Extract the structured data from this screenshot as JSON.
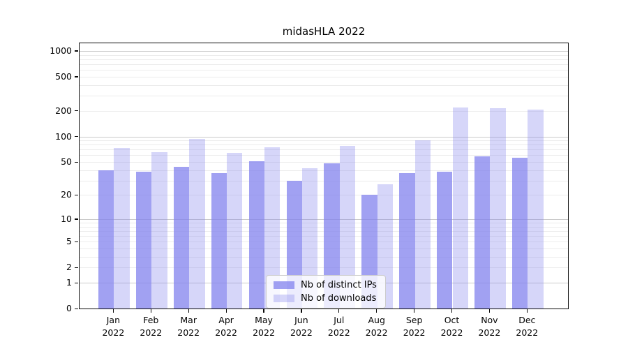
{
  "title": "midasHLA 2022",
  "legend": {
    "items": [
      {
        "label": "Nb of distinct IPs"
      },
      {
        "label": "Nb of downloads"
      }
    ]
  },
  "colors": {
    "bar_base": "#8282ee",
    "bar_dark": "rgba(130,130,238,0.75)",
    "bar_light": "rgba(130,130,238,0.33)",
    "grid_major": "#c9c9c9",
    "grid_minor": "#ececec",
    "axis": "#0a0a0a",
    "legend_border": "#cccccc",
    "text": "#000000"
  },
  "chart_data": {
    "type": "bar",
    "title": "midasHLA 2022",
    "categories": [
      "Jan 2022",
      "Feb 2022",
      "Mar 2022",
      "Apr 2022",
      "May 2022",
      "Jun 2022",
      "Jul 2022",
      "Aug 2022",
      "Sep 2022",
      "Oct 2022",
      "Nov 2022",
      "Dec 2022"
    ],
    "month_labels": [
      "Jan",
      "Feb",
      "Mar",
      "Apr",
      "May",
      "Jun",
      "Jul",
      "Aug",
      "Sep",
      "Oct",
      "Nov",
      "Dec"
    ],
    "year": "2022",
    "series": [
      {
        "name": "Nb of distinct IPs",
        "values": [
          40,
          38,
          44,
          37,
          51,
          30,
          48,
          20,
          37,
          38,
          58,
          56
        ]
      },
      {
        "name": "Nb of downloads",
        "values": [
          73,
          65,
          93,
          64,
          75,
          42,
          78,
          27,
          91,
          218,
          213,
          208
        ]
      }
    ],
    "yscale": "log10(1+v)",
    "yticks": [
      1000,
      500,
      200,
      100,
      50,
      20,
      10,
      5,
      2,
      1,
      0
    ],
    "ylim": [
      0,
      1275
    ],
    "grid": "horizontal major+minor",
    "legend_position": "lower center"
  }
}
